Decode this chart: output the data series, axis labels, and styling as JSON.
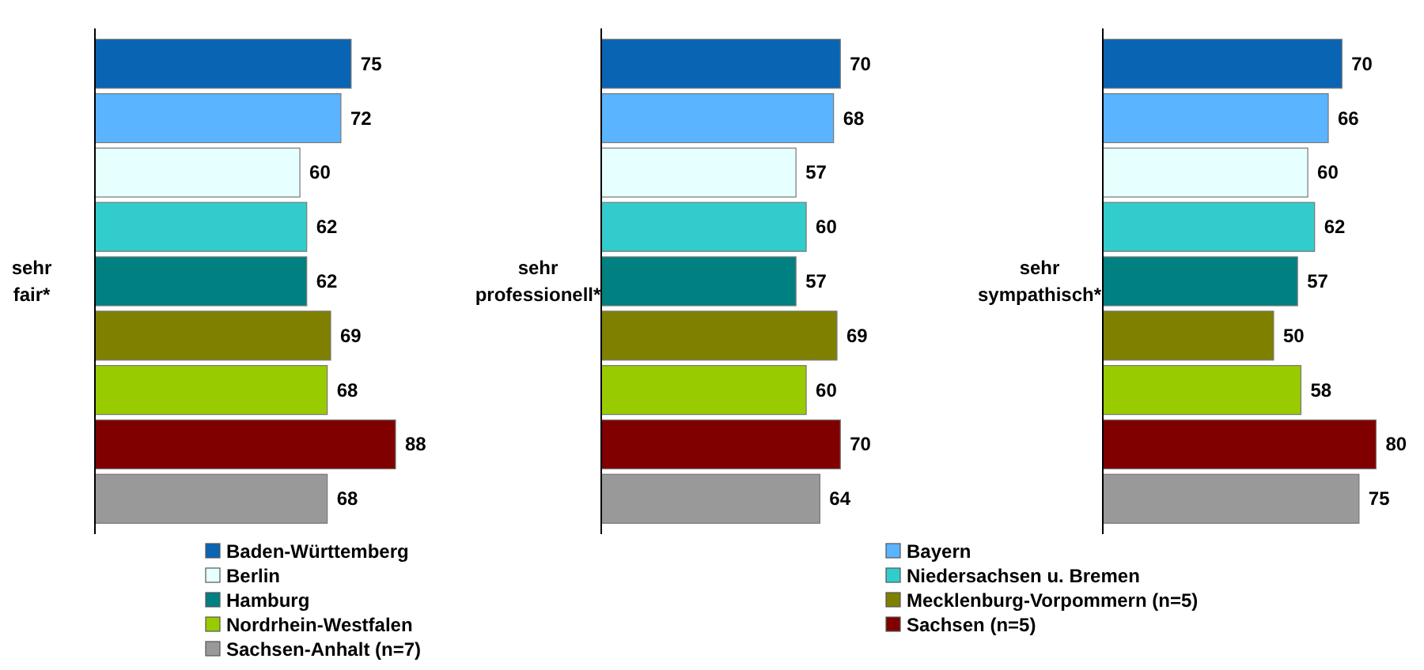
{
  "chart_data": [
    {
      "type": "bar",
      "orientation": "horizontal",
      "ylabel": "sehr fair*",
      "categories": [
        null
      ],
      "data_labels": true,
      "legend": "bottom",
      "series": [
        {
          "name": "Baden-Württemberg",
          "color": "#0a64b4",
          "values": [
            75
          ]
        },
        {
          "name": "Bayern",
          "color": "#5ab4ff",
          "values": [
            72
          ]
        },
        {
          "name": "Berlin",
          "color": "#e6ffff",
          "values": [
            60
          ]
        },
        {
          "name": "Niedersachsen u. Bremen",
          "color": "#33cccc",
          "values": [
            62
          ]
        },
        {
          "name": "Hamburg",
          "color": "#008080",
          "values": [
            62
          ]
        },
        {
          "name": "Mecklenburg-Vorpommern (n=5)",
          "color": "#808000",
          "values": [
            69
          ]
        },
        {
          "name": "Nordrhein-Westfalen",
          "color": "#99cc00",
          "values": [
            68
          ]
        },
        {
          "name": "Sachsen (n=5)",
          "color": "#800000",
          "values": [
            88
          ]
        },
        {
          "name": "Sachsen-Anhalt (n=7)",
          "color": "#999999",
          "values": [
            68
          ]
        }
      ]
    },
    {
      "type": "bar",
      "orientation": "horizontal",
      "ylabel": "sehr professionell*",
      "categories": [
        null
      ],
      "data_labels": true,
      "series": [
        {
          "color": "#0a64b4",
          "values": [
            70
          ]
        },
        {
          "color": "#5ab4ff",
          "values": [
            68
          ]
        },
        {
          "color": "#e6ffff",
          "values": [
            57
          ]
        },
        {
          "color": "#33cccc",
          "values": [
            60
          ]
        },
        {
          "color": "#008080",
          "values": [
            57
          ]
        },
        {
          "color": "#808000",
          "values": [
            69
          ]
        },
        {
          "color": "#99cc00",
          "values": [
            60
          ]
        },
        {
          "color": "#800000",
          "values": [
            70
          ]
        },
        {
          "color": "#999999",
          "values": [
            64
          ]
        }
      ]
    },
    {
      "type": "bar",
      "orientation": "horizontal",
      "ylabel": "sehr sympathisch*",
      "categories": [
        null
      ],
      "data_labels": true,
      "series": [
        {
          "color": "#0a64b4",
          "values": [
            70
          ]
        },
        {
          "color": "#5ab4ff",
          "values": [
            66
          ]
        },
        {
          "color": "#e6ffff",
          "values": [
            60
          ]
        },
        {
          "color": "#33cccc",
          "values": [
            62
          ]
        },
        {
          "color": "#008080",
          "values": [
            57
          ]
        },
        {
          "color": "#808000",
          "values": [
            50
          ]
        },
        {
          "color": "#99cc00",
          "values": [
            58
          ]
        },
        {
          "color": "#800000",
          "values": [
            80
          ]
        },
        {
          "color": "#999999",
          "values": [
            75
          ]
        }
      ]
    }
  ]
}
